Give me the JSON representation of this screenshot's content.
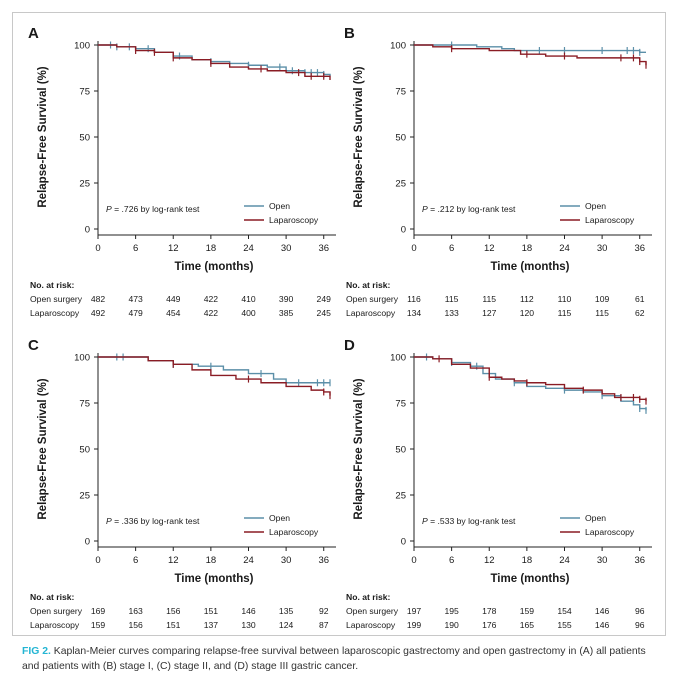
{
  "figure": {
    "label": "FIG 2.",
    "caption": "Kaplan-Meier curves comparing relapse-free survival between laparoscopic gastrectomy and open gastrectomy in (A) all patients and patients with (B) stage I, (C) stage II, and (D) stage III gastric cancer."
  },
  "colors": {
    "open": "#5b8fa8",
    "laparoscopy": "#8a1c24",
    "axis": "#222222",
    "text": "#1a1a1a"
  },
  "chart_data": [
    {
      "panel": "A",
      "type": "line",
      "title": "",
      "xlabel": "Time (months)",
      "ylabel": "Relapse-Free Survival (%)",
      "xlim": [
        0,
        37
      ],
      "ylim": [
        0,
        100
      ],
      "xticks": [
        "0",
        "6",
        "12",
        "18",
        "24",
        "30",
        "36"
      ],
      "yticks": [
        "0",
        "25",
        "50",
        "75",
        "100"
      ],
      "annotation": [
        "P",
        " = .726 by log-rank test"
      ],
      "series": [
        {
          "name": "Open",
          "color": "#5b8fa8",
          "x": [
            0,
            3,
            6,
            9,
            12,
            15,
            18,
            21,
            24,
            27,
            30,
            33,
            36,
            37
          ],
          "y": [
            100,
            99,
            98,
            96,
            94,
            92,
            91,
            90,
            89,
            88,
            86,
            85,
            84,
            83
          ],
          "censor_x": [
            2,
            3,
            5,
            8,
            13,
            18,
            24,
            29,
            31,
            33,
            34,
            35,
            36
          ]
        },
        {
          "name": "Laparoscopy",
          "color": "#8a1c24",
          "x": [
            0,
            3,
            6,
            9,
            12,
            15,
            18,
            21,
            24,
            27,
            30,
            33,
            36,
            37
          ],
          "y": [
            100,
            99,
            97,
            96,
            93,
            92,
            90,
            88,
            87,
            86,
            85,
            83,
            83,
            81
          ],
          "censor_x": [
            6,
            9,
            12,
            18,
            26,
            32,
            34,
            36
          ]
        }
      ],
      "at_risk": {
        "label": "No. at risk:",
        "rows": [
          {
            "name": "Open surgery",
            "values": [
              482,
              473,
              449,
              422,
              410,
              390,
              249
            ]
          },
          {
            "name": "Laparoscopy",
            "values": [
              492,
              479,
              454,
              422,
              400,
              385,
              245
            ]
          }
        ]
      }
    },
    {
      "panel": "B",
      "type": "line",
      "title": "",
      "xlabel": "Time (months)",
      "ylabel": "Relapse-Free Survival (%)",
      "xlim": [
        0,
        37
      ],
      "ylim": [
        0,
        100
      ],
      "xticks": [
        "0",
        "6",
        "12",
        "18",
        "24",
        "30",
        "36"
      ],
      "yticks": [
        "0",
        "25",
        "50",
        "75",
        "100"
      ],
      "annotation": [
        "P",
        " = .212 by log-rank test"
      ],
      "series": [
        {
          "name": "Open",
          "color": "#5b8fa8",
          "x": [
            0,
            6,
            10,
            14,
            16,
            20,
            36,
            37
          ],
          "y": [
            100,
            100,
            99,
            98,
            97,
            97,
            96,
            96
          ],
          "censor_x": [
            6,
            20,
            24,
            30,
            34,
            35,
            36
          ]
        },
        {
          "name": "Laparoscopy",
          "color": "#8a1c24",
          "x": [
            0,
            3,
            6,
            12,
            17,
            21,
            26,
            32,
            36,
            37
          ],
          "y": [
            100,
            99,
            98,
            97,
            95,
            94,
            93,
            93,
            91,
            89
          ],
          "censor_x": [
            6,
            18,
            24,
            33,
            35,
            36,
            37
          ]
        }
      ],
      "at_risk": {
        "label": "No. at risk:",
        "rows": [
          {
            "name": "Open surgery",
            "values": [
              116,
              115,
              115,
              112,
              110,
              109,
              61
            ]
          },
          {
            "name": "Laparoscopy",
            "values": [
              134,
              133,
              127,
              120,
              115,
              115,
              62
            ]
          }
        ]
      }
    },
    {
      "panel": "C",
      "type": "line",
      "title": "",
      "xlabel": "Time (months)",
      "ylabel": "Relapse-Free Survival (%)",
      "xlim": [
        0,
        37
      ],
      "ylim": [
        0,
        100
      ],
      "xticks": [
        "0",
        "6",
        "12",
        "18",
        "24",
        "30",
        "36"
      ],
      "yticks": [
        "0",
        "25",
        "50",
        "75",
        "100"
      ],
      "annotation": [
        "P",
        " = .336 by log-rank test"
      ],
      "series": [
        {
          "name": "Open",
          "color": "#5b8fa8",
          "x": [
            0,
            4,
            8,
            12,
            16,
            20,
            24,
            28,
            30,
            36,
            37
          ],
          "y": [
            100,
            100,
            98,
            96,
            95,
            93,
            91,
            88,
            86,
            86,
            86
          ],
          "censor_x": [
            3,
            4,
            12,
            18,
            26,
            32,
            35,
            36,
            37
          ]
        },
        {
          "name": "Laparoscopy",
          "color": "#8a1c24",
          "x": [
            0,
            4,
            8,
            12,
            15,
            18,
            22,
            26,
            30,
            34,
            36,
            37
          ],
          "y": [
            100,
            100,
            98,
            96,
            93,
            90,
            88,
            86,
            84,
            82,
            81,
            79
          ],
          "censor_x": [
            12,
            24,
            36,
            37
          ]
        }
      ],
      "at_risk": {
        "label": "No. at risk:",
        "rows": [
          {
            "name": "Open surgery",
            "values": [
              169,
              163,
              156,
              151,
              146,
              135,
              92
            ]
          },
          {
            "name": "Laparoscopy",
            "values": [
              159,
              156,
              151,
              137,
              130,
              124,
              87
            ]
          }
        ]
      }
    },
    {
      "panel": "D",
      "type": "line",
      "title": "",
      "xlabel": "Time (months)",
      "ylabel": "Relapse-Free Survival (%)",
      "xlim": [
        0,
        37
      ],
      "ylim": [
        0,
        100
      ],
      "xticks": [
        "0",
        "6",
        "12",
        "18",
        "24",
        "30",
        "36"
      ],
      "yticks": [
        "0",
        "25",
        "50",
        "75",
        "100"
      ],
      "annotation": [
        "P",
        " = .533 by log-rank test"
      ],
      "series": [
        {
          "name": "Open",
          "color": "#5b8fa8",
          "x": [
            0,
            3,
            6,
            9,
            11,
            13,
            16,
            18,
            21,
            24,
            27,
            30,
            33,
            35,
            36,
            37
          ],
          "y": [
            100,
            99,
            97,
            95,
            91,
            88,
            86,
            84,
            83,
            82,
            81,
            79,
            76,
            74,
            72,
            71
          ],
          "censor_x": [
            2,
            6,
            10,
            16,
            24,
            30,
            36,
            37
          ]
        },
        {
          "name": "Laparoscopy",
          "color": "#8a1c24",
          "x": [
            0,
            3,
            6,
            9,
            12,
            14,
            16,
            18,
            21,
            24,
            27,
            30,
            32,
            36,
            37
          ],
          "y": [
            100,
            99,
            96,
            94,
            89,
            88,
            87,
            86,
            85,
            83,
            82,
            80,
            78,
            77,
            76
          ],
          "censor_x": [
            4,
            12,
            18,
            27,
            33,
            35,
            36,
            37
          ]
        }
      ],
      "at_risk": {
        "label": "No. at risk:",
        "rows": [
          {
            "name": "Open surgery",
            "values": [
              197,
              195,
              178,
              159,
              154,
              146,
              96
            ]
          },
          {
            "name": "Laparoscopy",
            "values": [
              199,
              190,
              176,
              165,
              155,
              146,
              96
            ]
          }
        ]
      }
    }
  ]
}
